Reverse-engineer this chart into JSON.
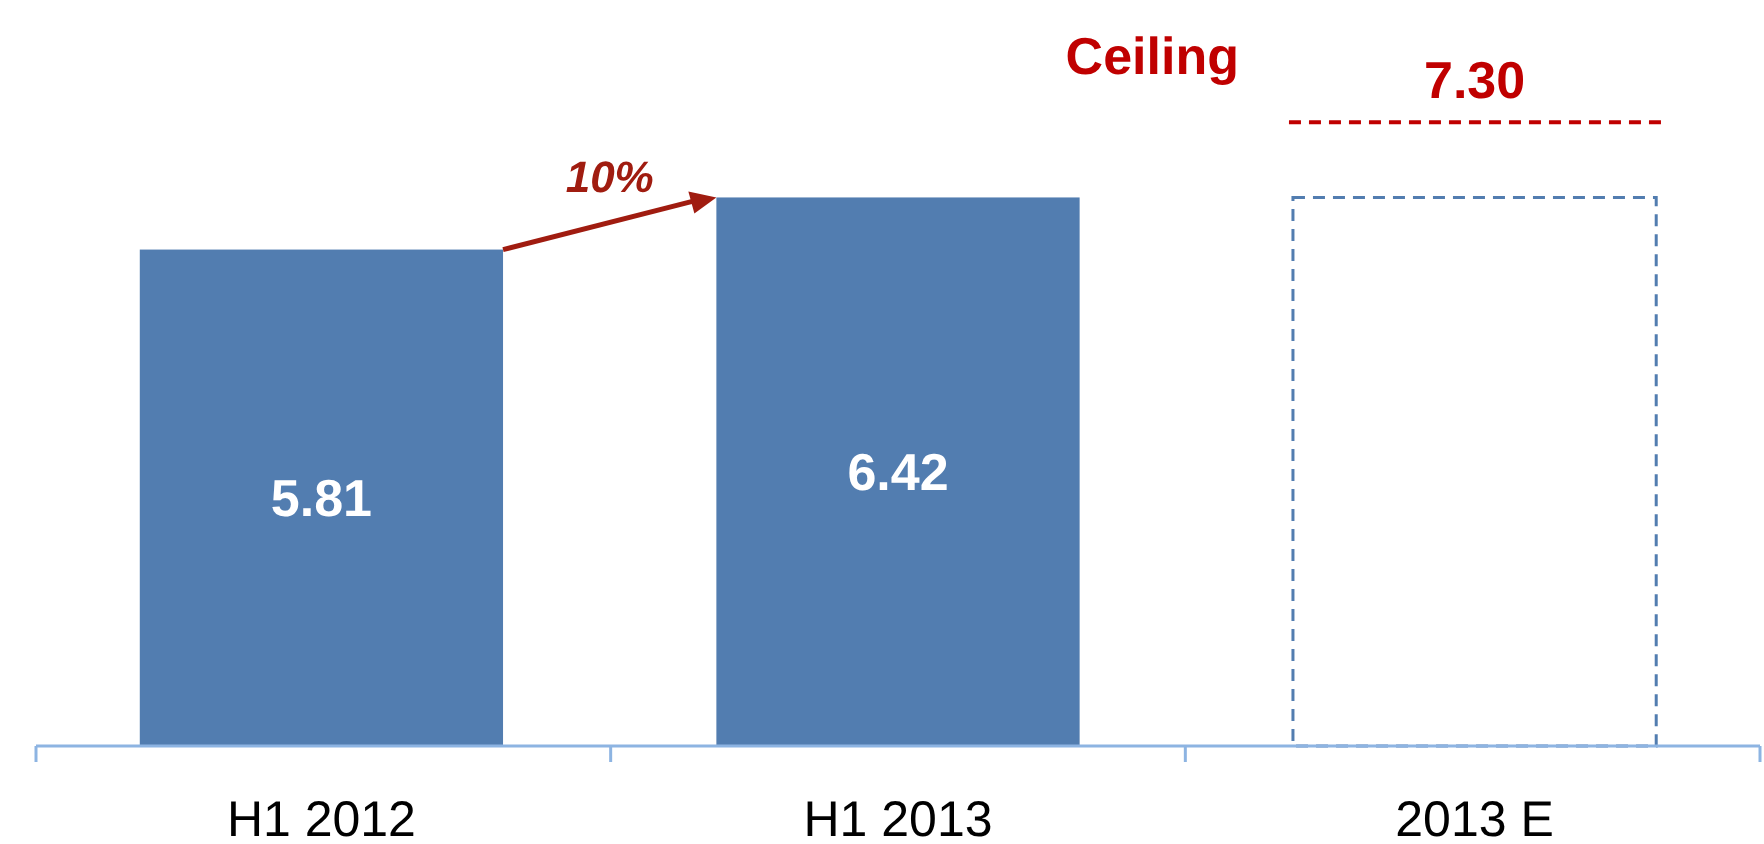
{
  "chart_data": {
    "type": "bar",
    "categories": [
      "H1 2012",
      "H1 2013",
      "2013 E"
    ],
    "series": [
      {
        "color": "#527db0",
        "values": [
          5.81,
          6.42,
          null
        ],
        "value_labels": [
          "5.81",
          "6.42",
          null
        ]
      },
      {
        "color": "#527db0",
        "values": [
          null,
          null,
          6.42
        ],
        "line_style": "dashed"
      }
    ],
    "ref_lines": [
      {
        "axis": "y",
        "value": 7.3,
        "label": "7.30",
        "color": "#c00000",
        "line_style": "dashed"
      }
    ],
    "annotations": [
      "Ceiling",
      "10%"
    ]
  }
}
